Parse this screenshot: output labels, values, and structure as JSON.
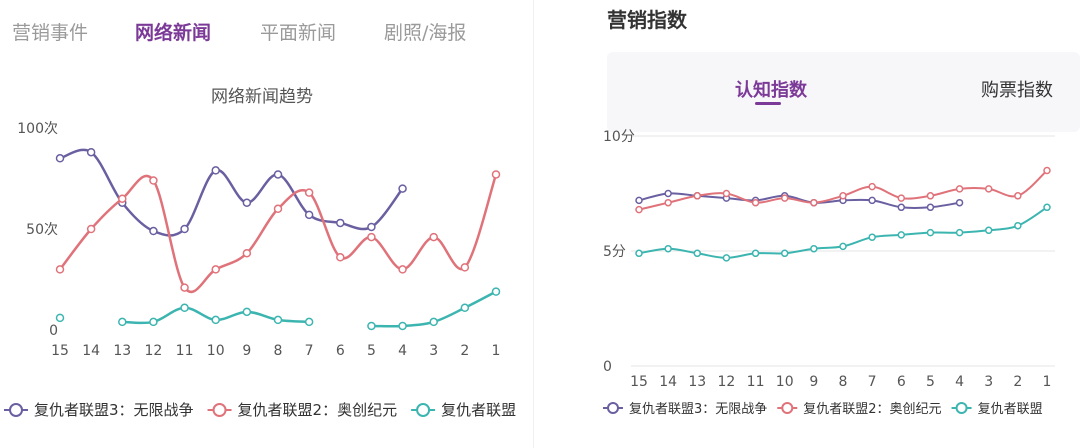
{
  "tabs": {
    "items": [
      "营销事件",
      "网络新闻",
      "平面新闻",
      "剧照/海报"
    ],
    "active_index": 1
  },
  "right_panel": {
    "title": "营销指数",
    "tabs": [
      "认知指数",
      "购票指数"
    ],
    "active_index": 0
  },
  "colors": {
    "series1": "#6a5fa0",
    "series2": "#e0727a",
    "series3": "#3cb5b0",
    "accent": "#7c3a98",
    "axis_text": "#555555"
  },
  "chart_data": [
    {
      "type": "line",
      "title": "网络新闻趋势",
      "xlabel": "",
      "ylabel": "",
      "categories": [
        "15",
        "14",
        "13",
        "12",
        "11",
        "10",
        "9",
        "8",
        "7",
        "6",
        "5",
        "4",
        "3",
        "2",
        "1"
      ],
      "ylim": [
        0,
        100
      ],
      "yticks": [
        0,
        50,
        100
      ],
      "ytick_labels": [
        "0",
        "50次",
        "100次"
      ],
      "grid": false,
      "legend": "bottom",
      "series": [
        {
          "name": "复仇者联盟3：无限战争",
          "color_key": "series1",
          "values": [
            85,
            88,
            63,
            49,
            50,
            79,
            63,
            77,
            57,
            53,
            51,
            70,
            null,
            null,
            null
          ]
        },
        {
          "name": "复仇者联盟2：奥创纪元",
          "color_key": "series2",
          "values": [
            30,
            50,
            65,
            74,
            21,
            30,
            38,
            60,
            68,
            36,
            46,
            30,
            46,
            31,
            77
          ]
        },
        {
          "name": "复仇者联盟",
          "color_key": "series3",
          "values": [
            6,
            null,
            4,
            4,
            11,
            5,
            9,
            5,
            4,
            null,
            2,
            2,
            4,
            11,
            19
          ]
        }
      ]
    },
    {
      "type": "line",
      "title": "",
      "xlabel": "",
      "ylabel": "",
      "categories": [
        "15",
        "14",
        "13",
        "12",
        "11",
        "10",
        "9",
        "8",
        "7",
        "6",
        "5",
        "4",
        "3",
        "2",
        "1"
      ],
      "ylim": [
        0,
        10
      ],
      "yticks": [
        0,
        5,
        10
      ],
      "ytick_labels": [
        "0",
        "5分",
        "10分"
      ],
      "grid": true,
      "legend": "bottom",
      "series": [
        {
          "name": "复仇者联盟3：无限战争",
          "color_key": "series1",
          "values": [
            7.2,
            7.5,
            7.4,
            7.3,
            7.2,
            7.4,
            7.1,
            7.2,
            7.2,
            6.9,
            6.9,
            7.1,
            null,
            null,
            null
          ]
        },
        {
          "name": "复仇者联盟2：奥创纪元",
          "color_key": "series2",
          "values": [
            6.8,
            7.1,
            7.4,
            7.5,
            7.1,
            7.3,
            7.1,
            7.4,
            7.8,
            7.3,
            7.4,
            7.7,
            7.7,
            7.4,
            8.5
          ]
        },
        {
          "name": "复仇者联盟",
          "color_key": "series3",
          "values": [
            4.9,
            5.1,
            4.9,
            4.7,
            4.9,
            4.9,
            5.1,
            5.2,
            5.6,
            5.7,
            5.8,
            5.8,
            5.9,
            6.1,
            6.9
          ]
        }
      ]
    }
  ]
}
